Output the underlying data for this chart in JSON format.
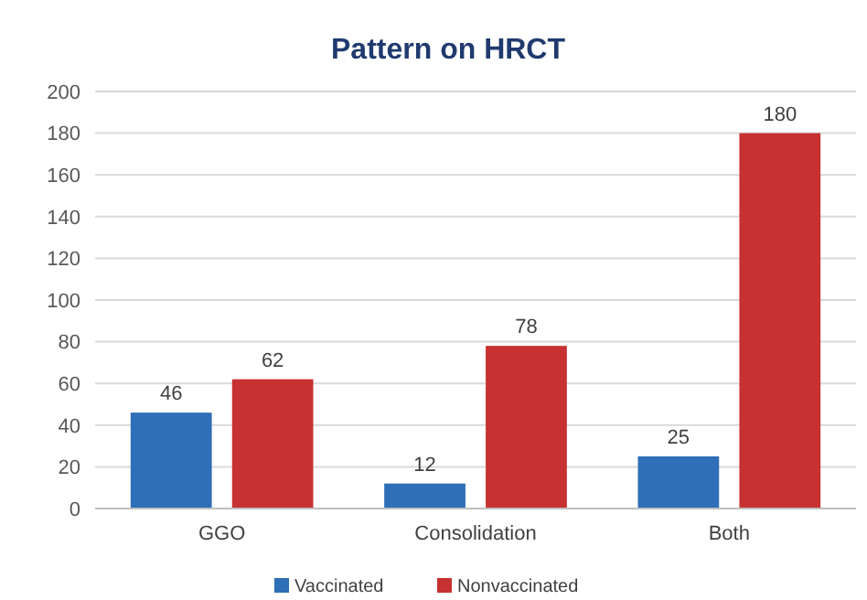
{
  "chart_data": {
    "type": "bar",
    "title": "Pattern on HRCT",
    "categories": [
      "GGO",
      "Consolidation",
      "Both"
    ],
    "series": [
      {
        "name": "Vaccinated",
        "color": "#2e6fb7",
        "values": [
          46,
          12,
          25
        ]
      },
      {
        "name": "Nonvaccinated",
        "color": "#c73131",
        "values": [
          62,
          78,
          180
        ]
      }
    ],
    "ylim": [
      0,
      200
    ],
    "yticks": [
      0,
      20,
      40,
      60,
      80,
      100,
      120,
      140,
      160,
      180,
      200
    ],
    "grid": "y",
    "legend": "bottom",
    "data_labels": true
  }
}
